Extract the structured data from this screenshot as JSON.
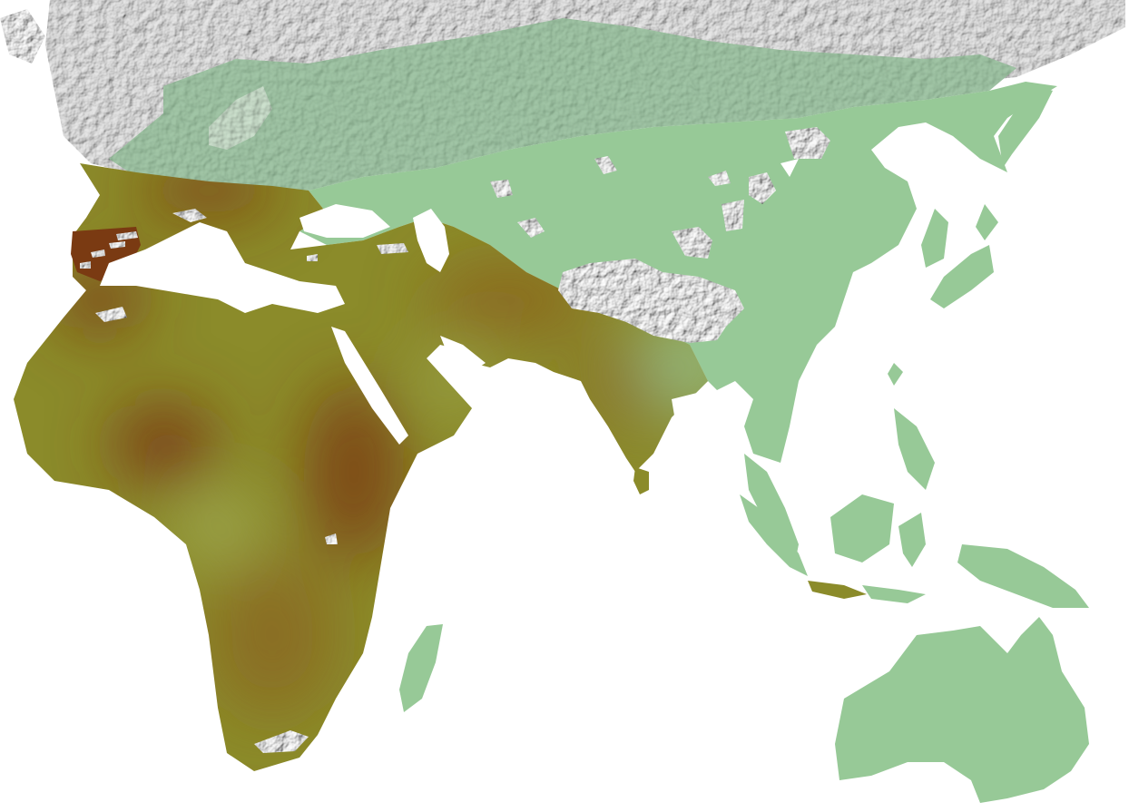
{
  "map": {
    "ocean_color": "#ffffff",
    "ice_color": "#c9c9c9",
    "ice_shadow_color": "#6e6e6e",
    "green_region_color": "#97c997",
    "tundra_green_color": "#6fa37a",
    "olive_region_color": "#8b8b2a",
    "dark_brown_color": "#7a3a12",
    "mid_brown_color": "#8a5a1c"
  }
}
